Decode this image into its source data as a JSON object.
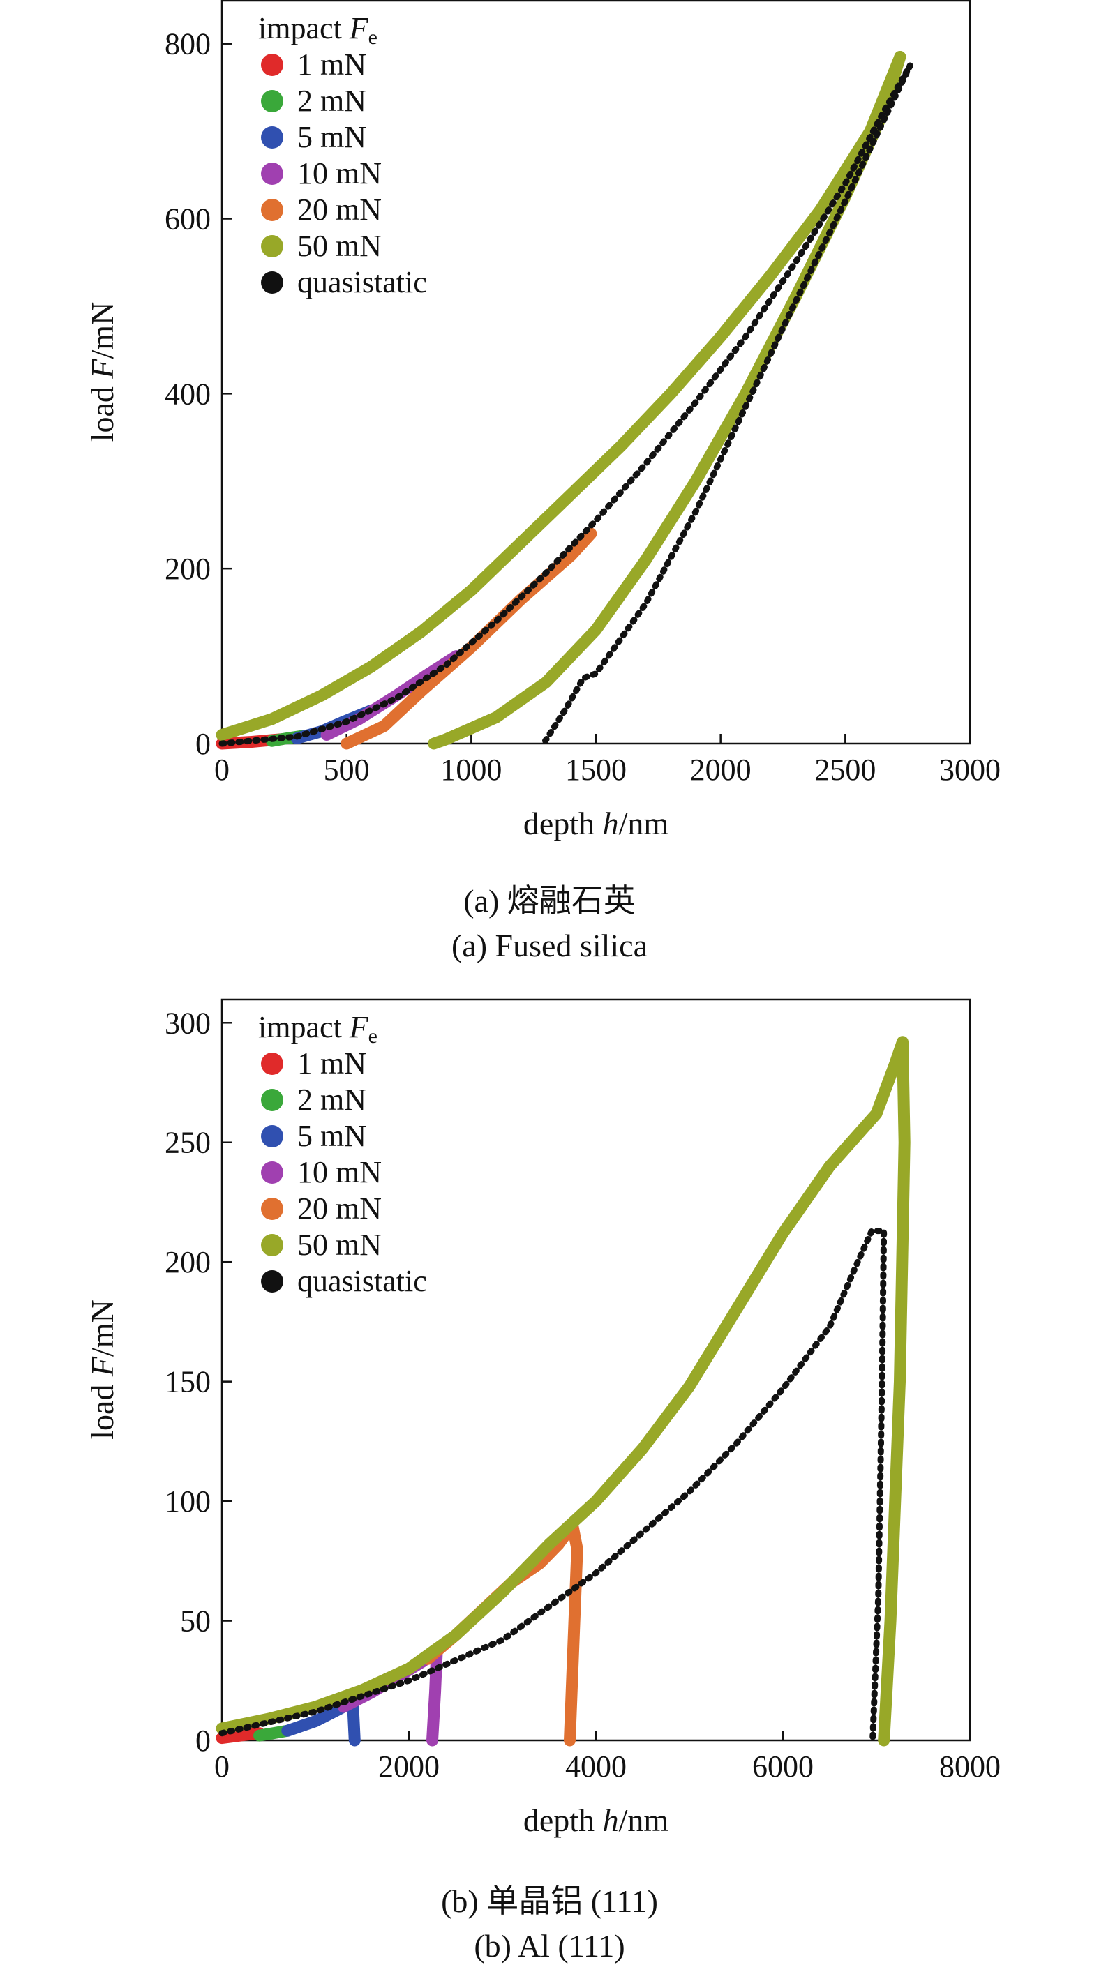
{
  "chart_data": [
    {
      "type": "line",
      "xlabel_parts": [
        "depth ",
        "h",
        "/nm"
      ],
      "ylabel_parts": [
        "load ",
        "F",
        "/mN"
      ],
      "xlim": [
        0,
        3000
      ],
      "ylim": [
        0,
        850
      ],
      "xticks": [
        0,
        500,
        1000,
        1500,
        2000,
        2500,
        3000
      ],
      "yticks": [
        0,
        200,
        400,
        600,
        800
      ],
      "legend_title_parts": [
        "impact ",
        "F",
        "e"
      ],
      "legend_position": "top-left",
      "caption_cn": "(a) 熔融石英",
      "caption_en": "(a) Fused silica",
      "series": [
        {
          "name": "1 mN",
          "color": "#e02a2a",
          "segments": [
            [
              [
                0,
                0
              ],
              [
                120,
                2
              ],
              [
                240,
                5
              ]
            ]
          ]
        },
        {
          "name": "2 mN",
          "color": "#3aa83a",
          "segments": [
            [
              [
                200,
                3
              ],
              [
                260,
                6
              ],
              [
                330,
                9
              ]
            ]
          ]
        },
        {
          "name": "5 mN",
          "color": "#3050b0",
          "segments": [
            [
              [
                300,
                6
              ],
              [
                400,
                14
              ],
              [
                480,
                24
              ],
              [
                600,
                38
              ]
            ]
          ]
        },
        {
          "name": "10 mN",
          "color": "#a040b0",
          "segments": [
            [
              [
                420,
                10
              ],
              [
                550,
                28
              ],
              [
                700,
                55
              ],
              [
                820,
                78
              ],
              [
                940,
                100
              ]
            ]
          ]
        },
        {
          "name": "20 mN",
          "color": "#e07030",
          "segments": [
            [
              [
                500,
                0
              ],
              [
                650,
                20
              ],
              [
                800,
                60
              ],
              [
                1000,
                110
              ],
              [
                1200,
                165
              ],
              [
                1400,
                215
              ],
              [
                1480,
                240
              ]
            ]
          ]
        },
        {
          "name": "50 mN",
          "color": "#98a828",
          "segments": [
            [
              [
                0,
                10
              ],
              [
                200,
                28
              ],
              [
                400,
                55
              ],
              [
                600,
                88
              ],
              [
                800,
                128
              ],
              [
                1000,
                175
              ],
              [
                1200,
                230
              ],
              [
                1400,
                285
              ],
              [
                1600,
                340
              ],
              [
                1800,
                400
              ],
              [
                2000,
                465
              ],
              [
                2200,
                535
              ],
              [
                2400,
                610
              ],
              [
                2600,
                700
              ],
              [
                2720,
                785
              ]
            ],
            [
              [
                2720,
                785
              ],
              [
                2650,
                720
              ],
              [
                2500,
                625
              ],
              [
                2300,
                510
              ],
              [
                2100,
                400
              ],
              [
                1900,
                300
              ],
              [
                1700,
                210
              ],
              [
                1500,
                130
              ],
              [
                1300,
                70
              ],
              [
                1100,
                30
              ],
              [
                900,
                5
              ],
              [
                850,
                0
              ]
            ]
          ]
        },
        {
          "name": "quasistatic",
          "color": "#111111",
          "segments": [
            [
              [
                0,
                0
              ],
              [
                300,
                8
              ],
              [
                500,
                25
              ],
              [
                700,
                52
              ],
              [
                900,
                90
              ],
              [
                1100,
                140
              ],
              [
                1300,
                195
              ],
              [
                1500,
                255
              ],
              [
                1700,
                320
              ],
              [
                1900,
                390
              ],
              [
                2100,
                465
              ],
              [
                2300,
                550
              ],
              [
                2500,
                640
              ],
              [
                2650,
                720
              ],
              [
                2760,
                775
              ]
            ],
            [
              [
                2760,
                775
              ],
              [
                2650,
                710
              ],
              [
                2500,
                620
              ],
              [
                2300,
                505
              ],
              [
                2100,
                385
              ],
              [
                1900,
                265
              ],
              [
                1700,
                160
              ],
              [
                1500,
                80
              ],
              [
                1450,
                75
              ],
              [
                1380,
                40
              ],
              [
                1290,
                0
              ]
            ]
          ]
        }
      ]
    },
    {
      "type": "line",
      "xlabel_parts": [
        "depth ",
        "h",
        "/nm"
      ],
      "ylabel_parts": [
        "load ",
        "F",
        "/mN"
      ],
      "xlim": [
        0,
        8000
      ],
      "ylim": [
        0,
        310
      ],
      "xticks": [
        0,
        2000,
        4000,
        6000,
        8000
      ],
      "yticks": [
        0,
        50,
        100,
        150,
        200,
        250,
        300
      ],
      "legend_title_parts": [
        "impact ",
        "F",
        "e"
      ],
      "legend_position": "top-left",
      "caption_cn": "(b) 单晶铝 (111)",
      "caption_en": "(b) Al (111)",
      "series": [
        {
          "name": "1 mN",
          "color": "#e02a2a",
          "segments": [
            [
              [
                0,
                1
              ],
              [
                200,
                2
              ],
              [
                400,
                3
              ]
            ]
          ]
        },
        {
          "name": "2 mN",
          "color": "#3aa83a",
          "segments": [
            [
              [
                400,
                2
              ],
              [
                550,
                3
              ],
              [
                700,
                4
              ]
            ]
          ]
        },
        {
          "name": "5 mN",
          "color": "#3050b0",
          "segments": [
            [
              [
                700,
                4
              ],
              [
                1000,
                8
              ],
              [
                1200,
                12
              ],
              [
                1400,
                16
              ],
              [
                1420,
                0
              ]
            ]
          ]
        },
        {
          "name": "10 mN",
          "color": "#a040b0",
          "segments": [
            [
              [
                1300,
                14
              ],
              [
                1600,
                20
              ],
              [
                1900,
                27
              ],
              [
                2150,
                33
              ],
              [
                2300,
                38
              ],
              [
                2280,
                20
              ],
              [
                2250,
                0
              ]
            ]
          ]
        },
        {
          "name": "20 mN",
          "color": "#e07030",
          "segments": [
            [
              [
                2200,
                34
              ],
              [
                2500,
                44
              ],
              [
                2800,
                55
              ],
              [
                3100,
                66
              ],
              [
                3400,
                74
              ],
              [
                3600,
                82
              ],
              [
                3750,
                90
              ],
              [
                3800,
                80
              ],
              [
                3760,
                40
              ],
              [
                3720,
                0
              ]
            ]
          ]
        },
        {
          "name": "50 mN",
          "color": "#98a828",
          "segments": [
            [
              [
                0,
                5
              ],
              [
                500,
                9
              ],
              [
                1000,
                14
              ],
              [
                1500,
                21
              ],
              [
                2000,
                30
              ],
              [
                2500,
                44
              ],
              [
                3000,
                62
              ],
              [
                3500,
                82
              ],
              [
                4000,
                100
              ],
              [
                4500,
                122
              ],
              [
                5000,
                148
              ],
              [
                5500,
                180
              ],
              [
                6000,
                212
              ],
              [
                6500,
                240
              ],
              [
                7000,
                262
              ],
              [
                7200,
                283
              ],
              [
                7280,
                292
              ],
              [
                7300,
                250
              ],
              [
                7250,
                150
              ],
              [
                7150,
                50
              ],
              [
                7080,
                0
              ]
            ]
          ]
        },
        {
          "name": "quasistatic",
          "color": "#111111",
          "segments": [
            [
              [
                0,
                3
              ],
              [
                1000,
                12
              ],
              [
                2000,
                25
              ],
              [
                3000,
                42
              ],
              [
                4000,
                70
              ],
              [
                5000,
                104
              ],
              [
                5500,
                124
              ],
              [
                6000,
                147
              ],
              [
                6500,
                173
              ],
              [
                6800,
                200
              ],
              [
                6950,
                213
              ],
              [
                7080,
                213
              ],
              [
                7060,
                150
              ],
              [
                7020,
                60
              ],
              [
                6960,
                0
              ]
            ]
          ]
        }
      ]
    }
  ]
}
